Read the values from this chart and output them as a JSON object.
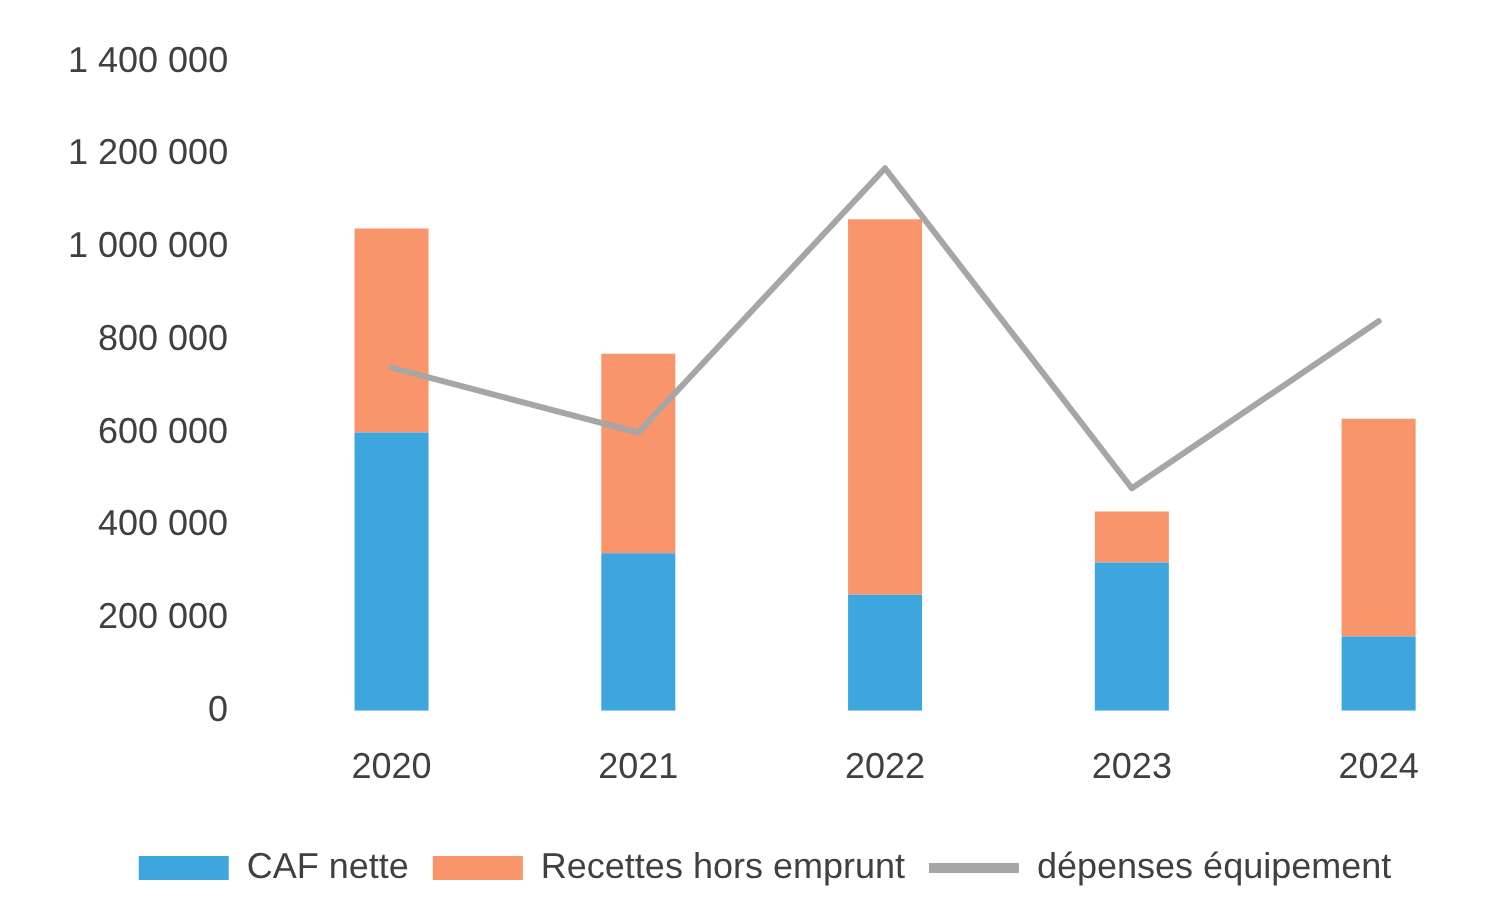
{
  "chart_data": {
    "type": "bar",
    "stacked": true,
    "categories": [
      "2020",
      "2021",
      "2022",
      "2023",
      "2024"
    ],
    "series": [
      {
        "name": "CAF nette",
        "color": "#3ea6dc",
        "values": [
          600000,
          340000,
          250000,
          320000,
          160000
        ]
      },
      {
        "name": "Recettes hors emprunt",
        "color": "#f8956a",
        "values": [
          440000,
          430000,
          810000,
          110000,
          470000
        ]
      },
      {
        "name": "dépenses équipement",
        "type": "line",
        "color": "#a6a6a6",
        "values": [
          740000,
          600000,
          1170000,
          480000,
          840000
        ]
      }
    ],
    "ylim": [
      0,
      1400000
    ],
    "yticks": [
      0,
      {
        "value": 200000,
        "label": "200 000"
      },
      {
        "value": 400000,
        "label": "400 000"
      },
      {
        "value": 600000,
        "label": "600 000"
      },
      {
        "value": 800000,
        "label": "800 000"
      },
      {
        "value": 1000000,
        "label": "1 000 000"
      },
      {
        "value": 1200000,
        "label": "1 200 000"
      },
      {
        "value": 1400000,
        "label": "1 400 000"
      }
    ],
    "grid": false,
    "legend": "bottom",
    "marker": "none",
    "line_style": "solid"
  }
}
